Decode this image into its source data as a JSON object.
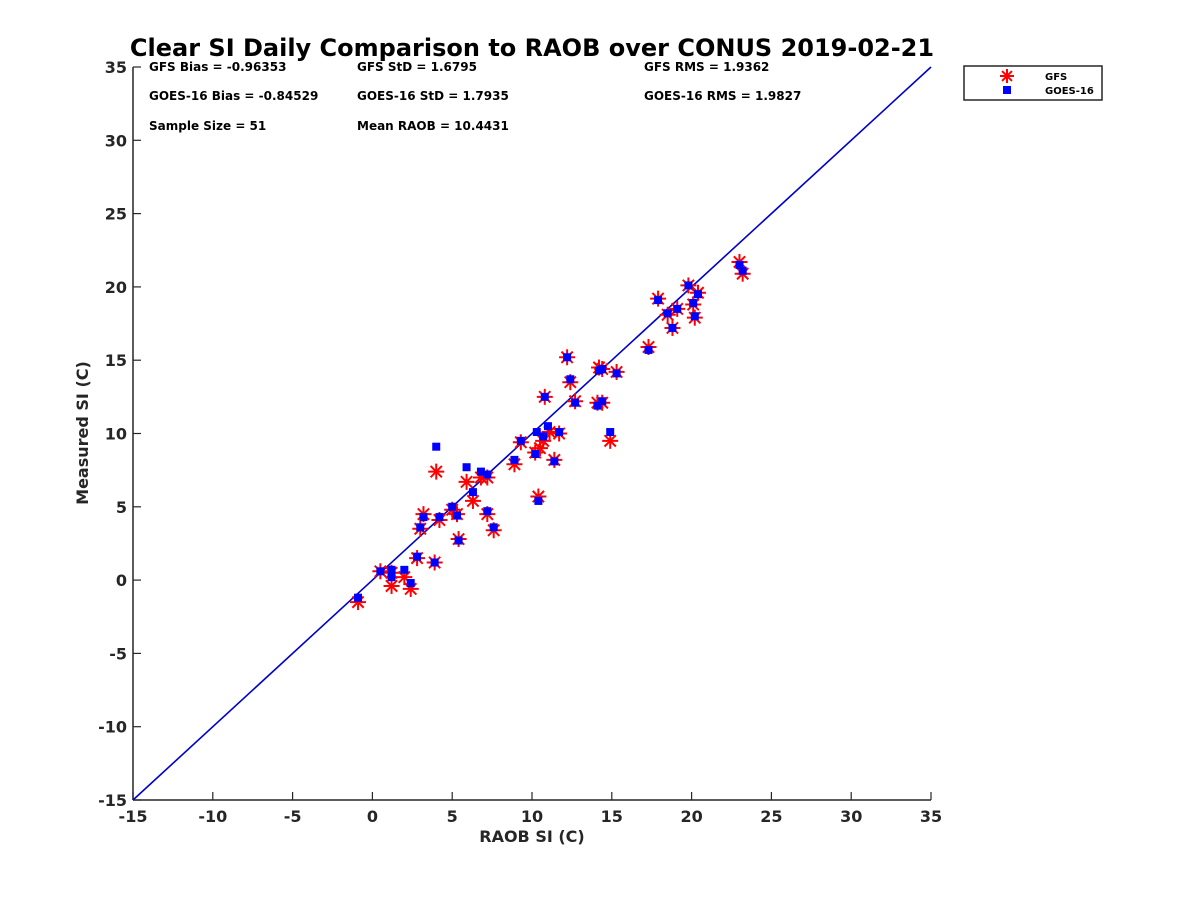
{
  "chart_data": {
    "type": "scatter",
    "title": "Clear SI Daily Comparison to RAOB over CONUS 2019-02-21",
    "xlabel": "RAOB SI (C)",
    "ylabel": "Measured SI (C)",
    "xlim": [
      -15,
      35
    ],
    "ylim": [
      -15,
      35
    ],
    "xticks": [
      "-15",
      "-10",
      "-5",
      "0",
      "5",
      "10",
      "15",
      "20",
      "25",
      "30",
      "35"
    ],
    "yticks": [
      "-15",
      "-10",
      "-5",
      "0",
      "5",
      "10",
      "15",
      "20",
      "25",
      "30",
      "35"
    ],
    "grid": false,
    "legend_position": "outside top-right",
    "reference_line": {
      "from": [
        -15,
        -15
      ],
      "to": [
        35,
        35
      ],
      "color": "#0000cc"
    },
    "stats": [
      [
        "GFS Bias = -0.96353",
        "GFS StD = 1.6795",
        "GFS RMS = 1.9362"
      ],
      [
        "GOES-16 Bias = -0.84529",
        "GOES-16 StD = 1.7935",
        "GOES-16 RMS = 1.9827"
      ],
      [
        "Sample Size = 51",
        "Mean RAOB = 10.4431",
        ""
      ]
    ],
    "series": [
      {
        "name": "GFS",
        "marker": "asterisk",
        "color": "#ff0000",
        "points": [
          [
            -0.9,
            -1.5
          ],
          [
            0.5,
            0.6
          ],
          [
            1.2,
            -0.4
          ],
          [
            1.2,
            0.5
          ],
          [
            2.0,
            0.2
          ],
          [
            2.4,
            -0.6
          ],
          [
            2.8,
            1.5
          ],
          [
            3.0,
            3.5
          ],
          [
            3.2,
            4.5
          ],
          [
            3.9,
            1.2
          ],
          [
            4.0,
            7.4
          ],
          [
            4.2,
            4.1
          ],
          [
            5.0,
            4.8
          ],
          [
            5.3,
            4.5
          ],
          [
            5.4,
            2.8
          ],
          [
            5.9,
            6.7
          ],
          [
            6.3,
            5.4
          ],
          [
            6.8,
            7.0
          ],
          [
            7.2,
            7.0
          ],
          [
            7.2,
            4.5
          ],
          [
            7.6,
            3.4
          ],
          [
            8.9,
            7.9
          ],
          [
            9.3,
            9.4
          ],
          [
            10.2,
            8.7
          ],
          [
            10.4,
            5.7
          ],
          [
            10.5,
            9.0
          ],
          [
            10.7,
            9.5
          ],
          [
            10.8,
            12.5
          ],
          [
            11.1,
            10.1
          ],
          [
            11.4,
            8.2
          ],
          [
            11.7,
            10.0
          ],
          [
            12.2,
            15.2
          ],
          [
            12.4,
            13.5
          ],
          [
            12.7,
            12.2
          ],
          [
            14.1,
            12.1
          ],
          [
            14.2,
            14.5
          ],
          [
            14.4,
            12.1
          ],
          [
            14.4,
            14.4
          ],
          [
            14.9,
            9.5
          ],
          [
            15.3,
            14.2
          ],
          [
            17.3,
            15.9
          ],
          [
            17.9,
            19.2
          ],
          [
            18.5,
            18.1
          ],
          [
            18.8,
            17.2
          ],
          [
            19.1,
            18.5
          ],
          [
            19.8,
            20.1
          ],
          [
            20.1,
            18.8
          ],
          [
            20.2,
            17.9
          ],
          [
            20.4,
            19.6
          ],
          [
            23.0,
            21.7
          ],
          [
            23.2,
            20.9
          ]
        ]
      },
      {
        "name": "GOES-16",
        "marker": "square",
        "color": "#0000ff",
        "points": [
          [
            -0.9,
            -1.2
          ],
          [
            0.5,
            0.6
          ],
          [
            1.2,
            0.2
          ],
          [
            1.2,
            0.7
          ],
          [
            2.0,
            0.7
          ],
          [
            2.4,
            -0.2
          ],
          [
            2.8,
            1.6
          ],
          [
            3.0,
            3.6
          ],
          [
            3.2,
            4.3
          ],
          [
            3.9,
            1.2
          ],
          [
            4.0,
            9.1
          ],
          [
            4.2,
            4.3
          ],
          [
            5.0,
            5.0
          ],
          [
            5.3,
            4.4
          ],
          [
            5.4,
            2.7
          ],
          [
            5.9,
            7.7
          ],
          [
            6.3,
            6.0
          ],
          [
            6.8,
            7.4
          ],
          [
            7.2,
            7.2
          ],
          [
            7.2,
            4.7
          ],
          [
            7.6,
            3.6
          ],
          [
            8.9,
            8.2
          ],
          [
            9.3,
            9.5
          ],
          [
            10.2,
            8.6
          ],
          [
            10.4,
            5.4
          ],
          [
            10.3,
            10.1
          ],
          [
            10.7,
            9.8
          ],
          [
            10.8,
            12.5
          ],
          [
            11.0,
            10.5
          ],
          [
            11.4,
            8.1
          ],
          [
            11.7,
            10.1
          ],
          [
            12.2,
            15.2
          ],
          [
            12.4,
            13.7
          ],
          [
            12.7,
            12.1
          ],
          [
            14.1,
            11.9
          ],
          [
            14.2,
            14.3
          ],
          [
            14.4,
            12.2
          ],
          [
            14.4,
            14.4
          ],
          [
            14.9,
            10.1
          ],
          [
            15.3,
            14.1
          ],
          [
            17.3,
            15.7
          ],
          [
            17.9,
            19.1
          ],
          [
            18.5,
            18.2
          ],
          [
            18.8,
            17.2
          ],
          [
            19.1,
            18.5
          ],
          [
            19.8,
            20.1
          ],
          [
            20.1,
            18.9
          ],
          [
            20.2,
            18.0
          ],
          [
            20.4,
            19.5
          ],
          [
            23.0,
            21.5
          ],
          [
            23.2,
            21.1
          ]
        ]
      }
    ]
  }
}
